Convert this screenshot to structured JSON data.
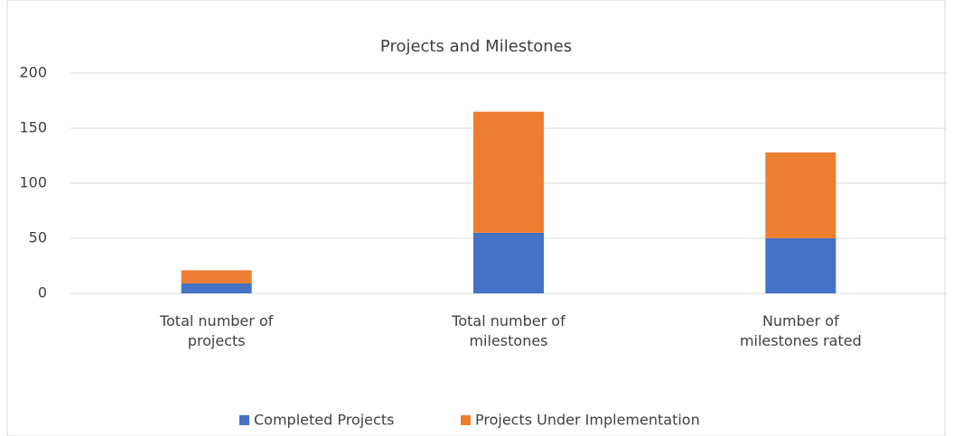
{
  "chart_data": {
    "type": "stacked-bar",
    "title": "Projects and Milestones",
    "categories": [
      "Total number of projects",
      "Total number of milestones",
      "Number of milestones rated"
    ],
    "series": [
      {
        "name": "Completed Projects",
        "color": "#4472c4",
        "values": [
          9,
          55,
          50
        ]
      },
      {
        "name": "Projects Under Implementation",
        "color": "#ed7d31",
        "values": [
          12,
          110,
          78
        ]
      }
    ],
    "ylim": [
      0,
      200
    ],
    "yticks": [
      0,
      50,
      100,
      150,
      200
    ],
    "grid": true,
    "legend": "bottom"
  }
}
